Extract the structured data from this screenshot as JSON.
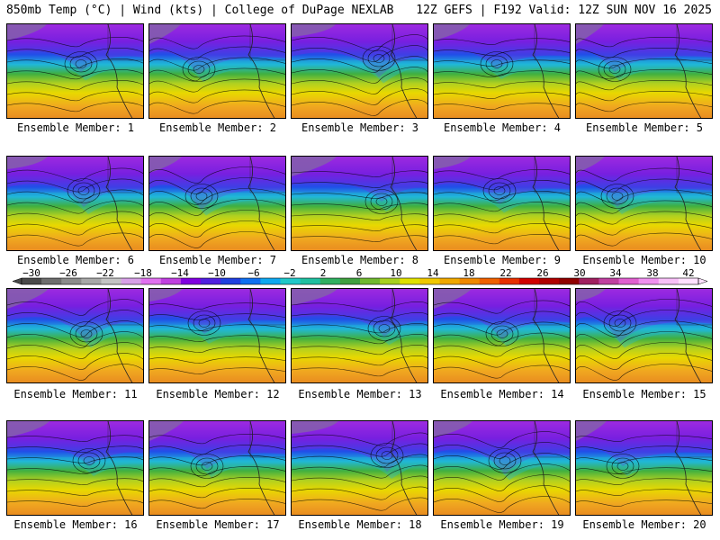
{
  "header": {
    "left": "850mb Temp (°C) | Wind (kts) | College of DuPage NEXLAB",
    "right": "12Z GEFS | F192 Valid: 12Z SUN NOV 16 2025"
  },
  "panel_label_prefix": "Ensemble Member: ",
  "members": [
    1,
    2,
    3,
    4,
    5,
    6,
    7,
    8,
    9,
    10,
    11,
    12,
    13,
    14,
    15,
    16,
    17,
    18,
    19,
    20
  ],
  "colorbar": {
    "ticks": [
      "−30",
      "−26",
      "−22",
      "−18",
      "−14",
      "−10",
      "−6",
      "−2",
      "2",
      "6",
      "10",
      "14",
      "18",
      "22",
      "26",
      "30",
      "34",
      "38",
      "42"
    ],
    "colors": [
      "#4a4a4a",
      "#6e6e6e",
      "#8c8c8c",
      "#a8a8a8",
      "#c4c4c4",
      "#d8a0e8",
      "#e070f0",
      "#c040e0",
      "#8000e0",
      "#5020e0",
      "#2040e0",
      "#1070f0",
      "#10a8f0",
      "#20c8c8",
      "#20c0a0",
      "#30b060",
      "#40a040",
      "#70b830",
      "#a8d020",
      "#e0e000",
      "#f0c800",
      "#f0a800",
      "#f08800",
      "#f06000",
      "#e83000",
      "#d00000",
      "#b00000",
      "#900000",
      "#a02060",
      "#c040a0",
      "#e060d0",
      "#f090f0",
      "#f8c0f8",
      "#ffe0ff"
    ]
  },
  "colors": {
    "cold_top": "#b030e0",
    "purple": "#7820e0",
    "blue": "#2050e8",
    "cyan": "#20b8d8",
    "green": "#40b040",
    "yellow_green": "#b0d020",
    "yellow": "#e8d800",
    "orange": "#f0a820",
    "dark_orange": "#e88820",
    "grey": "#8a8a8a"
  }
}
